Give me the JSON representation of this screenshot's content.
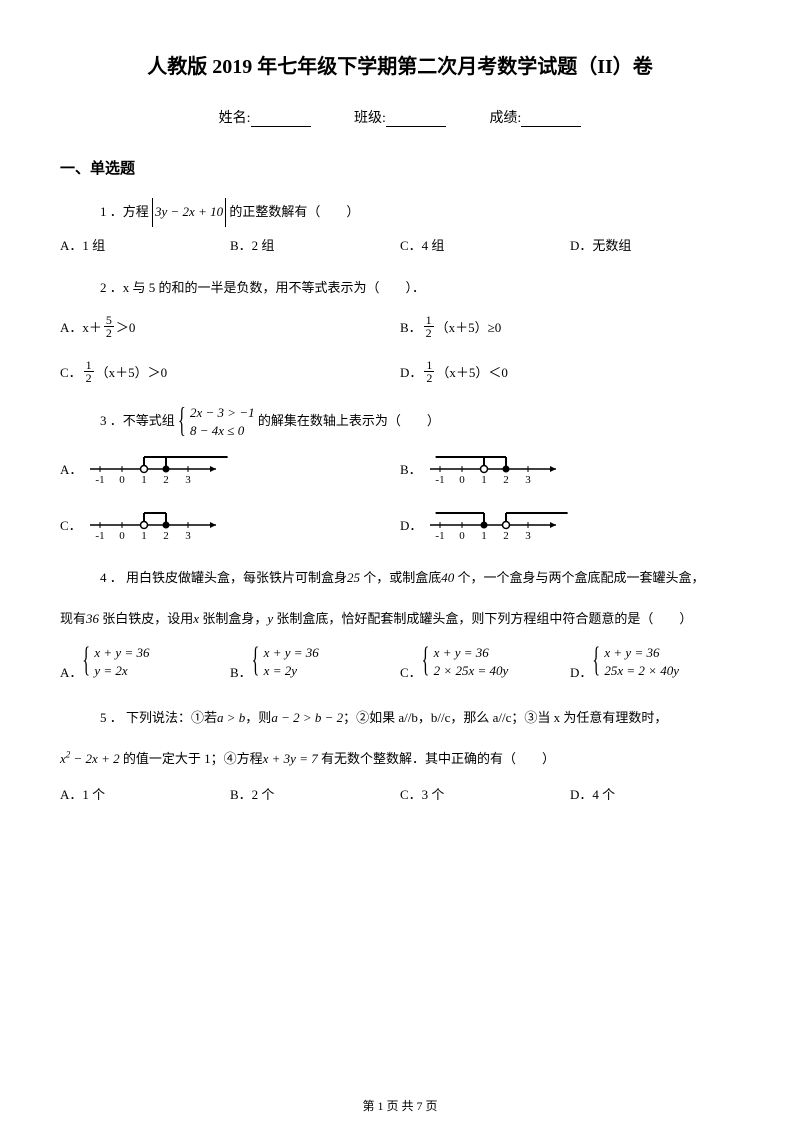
{
  "title": "人教版 2019 年七年级下学期第二次月考数学试题（II）卷",
  "header": {
    "name_label": "姓名:",
    "class_label": "班级:",
    "score_label": "成绩:"
  },
  "section1": "一、单选题",
  "q1": {
    "prefix": "1 ．方程",
    "expr": "3y − 2x + 10",
    "suffix": "的正整数解有（　　）",
    "A": "A．1 组",
    "B": "B．2 组",
    "C": "C．4 组",
    "D": "D．无数组"
  },
  "q2": {
    "text": "2 ．x 与 5 的和的一半是负数，用不等式表示为（　　）．",
    "A_pre": "A．x＋",
    "A_num": "5",
    "A_den": "2",
    "A_post": "＞0",
    "B_pre": "B．",
    "B_num": "1",
    "B_den": "2",
    "B_post": "（x＋5）≥0",
    "C_pre": "C．",
    "C_num": "1",
    "C_den": "2",
    "C_post": "（x＋5）＞0",
    "D_pre": "D．",
    "D_num": "1",
    "D_den": "2",
    "D_post": "（x＋5）＜0"
  },
  "q3": {
    "prefix": "3 ．不等式组",
    "line1": "2x − 3 > −1",
    "line2": "8 − 4x ≤ 0",
    "suffix": " 的解集在数轴上表示为（　　）",
    "A": "A．",
    "B": "B．",
    "C": "C．",
    "D": "D．",
    "ticks": [
      "-1",
      "0",
      "1",
      "2",
      "3"
    ],
    "nlA": {
      "openAt": 1,
      "closedAt": 2,
      "barFrom": 1,
      "barTo": 4.8
    },
    "nlB": {
      "openAt": 1,
      "closedAt": 2,
      "barFrom": -1.2,
      "barTo": 2
    },
    "nlC": {
      "openAt": 1,
      "closedAt": 2,
      "barFrom": 1,
      "barTo": 2
    },
    "nlD": {
      "openAt": 2,
      "closedAt": 1,
      "barFrom": -1.2,
      "barTo": 1,
      "bar2From": 2,
      "bar2To": 4.8
    }
  },
  "q4": {
    "l1a": "4 ． 用白铁皮做罐头盒，每张铁片可制盒身",
    "l1b": "25",
    "l1c": " 个，或制盒底",
    "l1d": "40",
    "l1e": " 个，一个盒身与两个盒底配成一套罐头盒，",
    "l2a": "现有",
    "l2b": "36",
    "l2c": " 张白铁皮，设用",
    "l2d": "x",
    "l2e": " 张制盒身，",
    "l2f": "y",
    "l2g": " 张制盒底，恰好配套制成罐头盒，则下列方程组中符合题意的是（　　）",
    "A": "A．",
    "A1": "x + y = 36",
    "A2": "y = 2x",
    "B": "B．",
    "B1": "x + y = 36",
    "B2": "x = 2y",
    "C": "C．",
    "C1": "x + y = 36",
    "C2": "2 × 25x = 40y",
    "D": "D．",
    "D1": "x + y = 36",
    "D2": "25x = 2 × 40y"
  },
  "q5": {
    "l1a": "5 ． 下列说法：①若",
    "l1b": "a > b",
    "l1c": "，则",
    "l1d": "a − 2 > b − 2",
    "l1e": "；②如果 a//b，b//c，那么 a//c；③当 x 为任意有理数时，",
    "l2a": "x",
    "l2b": " − 2x + 2",
    "l2c": " 的值一定大于 1；④方程",
    "l2d": "x + 3y = 7",
    "l2e": " 有无数个整数解．其中正确的有（　　）",
    "A": "A．1 个",
    "B": "B．2 个",
    "C": "C．3 个",
    "D": "D．4 个"
  },
  "footer": "第 1 页 共 7 页"
}
